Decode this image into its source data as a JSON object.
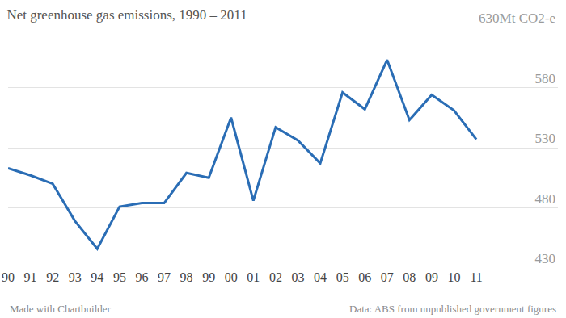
{
  "chart_data": {
    "type": "line",
    "title": "Net greenhouse gas emissions, 1990 – 2011",
    "categories": [
      "90",
      "91",
      "92",
      "93",
      "94",
      "95",
      "96",
      "97",
      "98",
      "99",
      "00",
      "01",
      "02",
      "03",
      "04",
      "05",
      "06",
      "07",
      "08",
      "09",
      "10",
      "11"
    ],
    "values": [
      513,
      507,
      500,
      469,
      446,
      481,
      484,
      484,
      509,
      505,
      555,
      486,
      547,
      536,
      517,
      576,
      562,
      603,
      553,
      574,
      561,
      537
    ],
    "color": "#2a6db5",
    "ylim": [
      430,
      630
    ],
    "yticks": [
      430,
      480,
      530,
      580,
      {
        "value": 630,
        "label": "630Mt CO2-e"
      }
    ],
    "grid": true,
    "annotations": [
      "Made with Chartbuilder",
      "Data: ABS from unpublished government figures"
    ]
  }
}
